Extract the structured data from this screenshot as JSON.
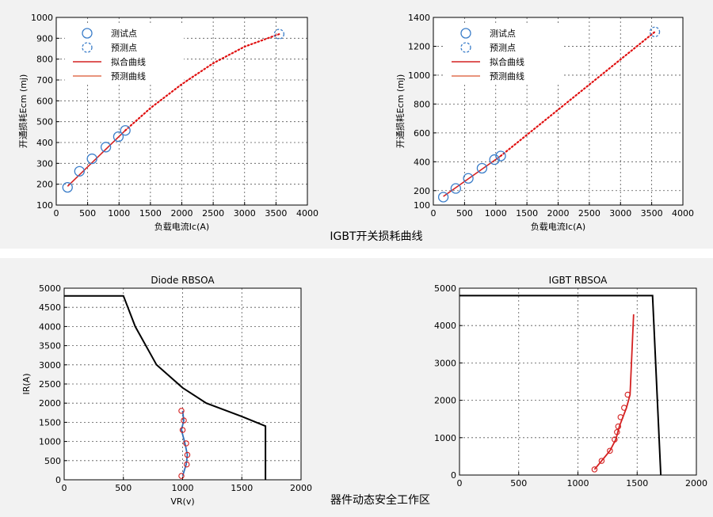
{
  "top_caption": "IGBT开关损耗曲线",
  "bottom_caption": "器件动态安全工作区",
  "chart_data": [
    {
      "id": "left-top",
      "type": "scatter",
      "title": "",
      "xlabel": "负载电流Ic(A)",
      "ylabel": "开通损耗Ecm (mj)",
      "xlim": [
        0,
        4000
      ],
      "ylim": [
        100,
        1000
      ],
      "xticks": [
        0,
        500,
        1000,
        1500,
        2000,
        2500,
        3000,
        3500,
        4000
      ],
      "yticks": [
        100,
        200,
        300,
        400,
        500,
        600,
        700,
        800,
        900,
        1000
      ],
      "grid": true,
      "legend_placement": "top-left",
      "legend": [
        "测试点",
        "预测点",
        "拟合曲线",
        "预测曲线"
      ],
      "measured_points": {
        "x": [
          180,
          370,
          570,
          790,
          990,
          1100
        ],
        "y": [
          185,
          262,
          322,
          378,
          428,
          458
        ]
      },
      "predicted_points": {
        "x": [
          3550
        ],
        "y": [
          920
        ]
      },
      "fit_curve": {
        "x": [
          180,
          1100
        ],
        "y": [
          190,
          458
        ]
      },
      "predicted_curve": {
        "x": [
          1100,
          1500,
          2000,
          2500,
          3000,
          3550
        ],
        "y": [
          458,
          565,
          680,
          780,
          860,
          920
        ]
      },
      "colors": {
        "marker": "#3a7dc9",
        "fit": "#d42020",
        "predicted": "#e01010"
      }
    },
    {
      "id": "right-top",
      "type": "scatter",
      "title": "",
      "xlabel": "负载电流Ic(A)",
      "ylabel": "开通损耗Ecm (mj)",
      "xlim": [
        0,
        4000
      ],
      "ylim": [
        100,
        1400
      ],
      "xticks": [
        0,
        500,
        1000,
        1500,
        2000,
        2500,
        3000,
        3500,
        4000
      ],
      "yticks": [
        100,
        200,
        400,
        600,
        800,
        1000,
        1200,
        1400
      ],
      "grid": true,
      "legend_placement": "top-right",
      "legend": [
        "测试点",
        "预测点",
        "拟合曲线",
        "预测曲线"
      ],
      "measured_points": {
        "x": [
          160,
          360,
          560,
          780,
          980,
          1080
        ],
        "y": [
          155,
          215,
          285,
          355,
          415,
          440
        ]
      },
      "predicted_points": {
        "x": [
          3550
        ],
        "y": [
          1300
        ]
      },
      "fit_curve": {
        "x": [
          160,
          1080
        ],
        "y": [
          160,
          440
        ]
      },
      "predicted_curve": {
        "x": [
          1080,
          3550
        ],
        "y": [
          440,
          1300
        ]
      },
      "colors": {
        "marker": "#3a7dc9",
        "fit": "#d42020",
        "predicted": "#e01010"
      }
    },
    {
      "id": "left-bottom",
      "type": "line",
      "title": "Diode RBSOA",
      "xlabel": "VR(v)",
      "ylabel": "IR(A)",
      "xlim": [
        0,
        2000
      ],
      "ylim": [
        0,
        5000
      ],
      "xticks": [
        0,
        500,
        1000,
        1500,
        2000
      ],
      "yticks": [
        0,
        500,
        1000,
        1500,
        2000,
        2500,
        3000,
        3500,
        4000,
        4500,
        5000
      ],
      "grid": true,
      "boundary": {
        "x": [
          0,
          500,
          600,
          780,
          1000,
          1200,
          1500,
          1700,
          1700
        ],
        "y": [
          4800,
          4800,
          4000,
          3000,
          2400,
          2000,
          1650,
          1400,
          0
        ]
      },
      "fit_curve": {
        "x": [
          1000,
          1010,
          990,
          1020,
          1040,
          1030,
          1000
        ],
        "y": [
          1800,
          1550,
          1300,
          950,
          650,
          400,
          100
        ]
      },
      "measured_points": {
        "x": [
          990,
          1010,
          1000,
          1030,
          1040,
          1035,
          990
        ],
        "y": [
          1800,
          1550,
          1300,
          950,
          650,
          400,
          100
        ]
      },
      "colors": {
        "boundary": "#000000",
        "fit": "#2f6fba",
        "marker": "#d42020"
      }
    },
    {
      "id": "right-bottom",
      "type": "line",
      "title": "IGBT RBSOA",
      "xlabel": "",
      "ylabel": "",
      "xlim": [
        0,
        2000
      ],
      "ylim": [
        0,
        5000
      ],
      "xticks": [
        0,
        500,
        1000,
        1500,
        2000
      ],
      "yticks": [
        0,
        1000,
        2000,
        3000,
        4000,
        5000
      ],
      "grid": true,
      "boundary": {
        "x": [
          0,
          1630,
          1700
        ],
        "y": [
          4800,
          4800,
          0
        ]
      },
      "fit_curve": {
        "x": [
          1140,
          1200,
          1270,
          1320,
          1350,
          1380,
          1410,
          1440,
          1470
        ],
        "y": [
          150,
          380,
          650,
          950,
          1300,
          1550,
          1800,
          2150,
          4300
        ]
      },
      "measured_points": {
        "x": [
          1140,
          1200,
          1270,
          1310,
          1330,
          1340,
          1360,
          1390,
          1420
        ],
        "y": [
          150,
          380,
          650,
          950,
          1150,
          1300,
          1550,
          1800,
          2150
        ]
      },
      "colors": {
        "boundary": "#000000",
        "fit": "#d42020",
        "marker": "#d42020"
      }
    }
  ]
}
